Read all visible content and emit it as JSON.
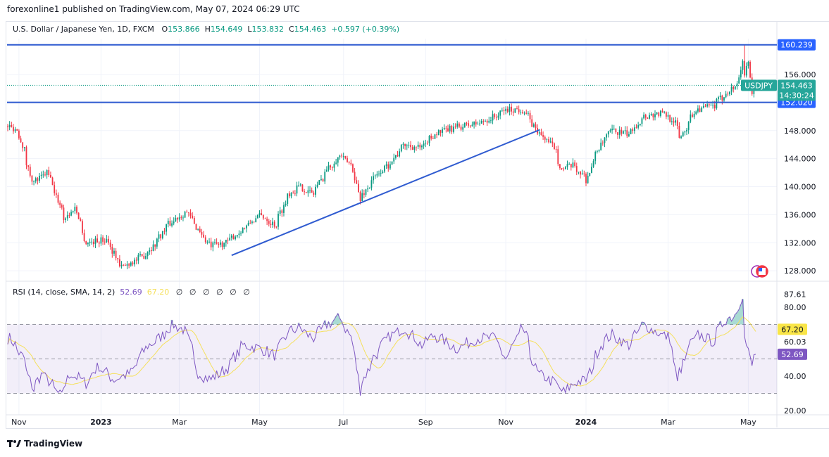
{
  "publisher_line": "forexonline1 published on TradingView.com, May 07, 2024 06:29 UTC",
  "legend": {
    "title": "U.S. Dollar / Japanese Yen, 1D, FXCM",
    "o_label": "O",
    "o": "153.866",
    "h_label": "H",
    "h": "154.649",
    "l_label": "L",
    "l": "153.832",
    "c_label": "C",
    "c": "154.463",
    "change": "+0.597 (+0.39%)"
  },
  "rsi_legend": {
    "title": "RSI (14, close, SMA, 14, 2)",
    "rsi": "52.69",
    "sma": "67.20",
    "empty": [
      "∅",
      "∅",
      "∅",
      "∅",
      "∅",
      "∅"
    ]
  },
  "footer": {
    "brand": "TradingView"
  },
  "colors": {
    "up": "#089981",
    "down": "#f23645",
    "line": "#2f5bd0",
    "rsi": "#7e57c2",
    "sma": "#f5e05c",
    "band": "#7e57c2"
  },
  "chart_data": [
    {
      "type": "candlestick",
      "symbol": "USDJPY",
      "timeframe": "1D",
      "last": {
        "date": "2024-05-07",
        "open": 153.866,
        "high": 154.649,
        "low": 153.832,
        "close": 154.463
      },
      "countdown": "14:30:24",
      "approx_close_path": [
        [
          "2022-10-24",
          148.6
        ],
        [
          "2022-10-31",
          148.0
        ],
        [
          "2022-11-11",
          140.5
        ],
        [
          "2022-11-22",
          142.0
        ],
        [
          "2022-12-05",
          135.5
        ],
        [
          "2022-12-13",
          137.0
        ],
        [
          "2022-12-21",
          132.0
        ],
        [
          "2023-01-06",
          132.5
        ],
        [
          "2023-01-16",
          128.5
        ],
        [
          "2023-02-01",
          130.0
        ],
        [
          "2023-02-09",
          131.5
        ],
        [
          "2023-02-20",
          134.5
        ],
        [
          "2023-03-06",
          136.5
        ],
        [
          "2023-03-13",
          134.5
        ],
        [
          "2023-03-24",
          131.5
        ],
        [
          "2023-04-05",
          132.0
        ],
        [
          "2023-04-18",
          134.0
        ],
        [
          "2023-05-01",
          136.0
        ],
        [
          "2023-05-12",
          134.5
        ],
        [
          "2023-05-22",
          139.0
        ],
        [
          "2023-05-30",
          140.0
        ],
        [
          "2023-06-09",
          139.0
        ],
        [
          "2023-06-20",
          142.5
        ],
        [
          "2023-06-30",
          144.5
        ],
        [
          "2023-07-10",
          142.5
        ],
        [
          "2023-07-14",
          138.0
        ],
        [
          "2023-07-24",
          141.0
        ],
        [
          "2023-08-04",
          143.0
        ],
        [
          "2023-08-17",
          146.0
        ],
        [
          "2023-08-30",
          145.5
        ],
        [
          "2023-09-08",
          147.5
        ],
        [
          "2023-09-25",
          148.5
        ],
        [
          "2023-10-11",
          149.0
        ],
        [
          "2023-10-24",
          150.0
        ],
        [
          "2023-11-01",
          151.0
        ],
        [
          "2023-11-14",
          151.0
        ],
        [
          "2023-11-24",
          148.0
        ],
        [
          "2023-12-08",
          145.5
        ],
        [
          "2023-12-13",
          142.5
        ],
        [
          "2023-12-22",
          143.0
        ],
        [
          "2024-01-01",
          141.0
        ],
        [
          "2024-01-08",
          145.0
        ],
        [
          "2024-01-19",
          148.0
        ],
        [
          "2024-02-01",
          147.5
        ],
        [
          "2024-02-12",
          150.0
        ],
        [
          "2024-02-26",
          150.5
        ],
        [
          "2024-03-06",
          149.5
        ],
        [
          "2024-03-11",
          147.0
        ],
        [
          "2024-03-22",
          151.0
        ],
        [
          "2024-04-05",
          151.5
        ],
        [
          "2024-04-15",
          153.5
        ],
        [
          "2024-04-23",
          154.6
        ],
        [
          "2024-04-26",
          158.0
        ],
        [
          "2024-04-29",
          156.0
        ],
        [
          "2024-05-01",
          157.5
        ],
        [
          "2024-05-03",
          153.0
        ],
        [
          "2024-05-07",
          154.463
        ]
      ],
      "spike": {
        "date": "2024-04-29",
        "high": 160.239
      },
      "horizontal_levels": [
        {
          "price": 160.239,
          "label": "160.239"
        },
        {
          "price": 152.02,
          "label": "152.020"
        }
      ],
      "trendline": {
        "from": [
          "2023-04-10",
          130.2
        ],
        "to": [
          "2023-11-27",
          148.1
        ]
      },
      "y_ticks": [
        "156.000",
        "148.000",
        "144.000",
        "140.000",
        "136.000",
        "132.000",
        "128.000"
      ],
      "price_label": {
        "symbol": "USDJPY",
        "value": "154.463"
      },
      "x_ticks": [
        {
          "label": "Nov",
          "date": "2022-11-01"
        },
        {
          "label": "2023",
          "date": "2023-01-02"
        },
        {
          "label": "Mar",
          "date": "2023-03-01"
        },
        {
          "label": "May",
          "date": "2023-05-01"
        },
        {
          "label": "Jul",
          "date": "2023-07-03"
        },
        {
          "label": "Sep",
          "date": "2023-09-01"
        },
        {
          "label": "Nov",
          "date": "2023-11-01"
        },
        {
          "label": "2024",
          "date": "2024-01-01"
        },
        {
          "label": "Mar",
          "date": "2024-03-01"
        },
        {
          "label": "May",
          "date": "2024-05-01"
        }
      ]
    },
    {
      "type": "line",
      "title": "RSI (14, close, SMA, 14, 2)",
      "ylim": [
        20,
        90
      ],
      "bands": {
        "upper": 70,
        "middle": 50,
        "lower": 30
      },
      "y_ticks": [
        "87.61",
        "80.00",
        "60.03",
        "40.00",
        "20.00"
      ],
      "last_rsi": "52.69",
      "last_sma": "67.20",
      "rsi_path": [
        [
          "2022-10-25",
          62
        ],
        [
          "2022-11-04",
          50
        ],
        [
          "2022-11-11",
          32
        ],
        [
          "2022-11-18",
          42
        ],
        [
          "2022-12-02",
          28
        ],
        [
          "2022-12-09",
          42
        ],
        [
          "2022-12-21",
          36
        ],
        [
          "2022-12-30",
          46
        ],
        [
          "2023-01-11",
          38
        ],
        [
          "2023-01-24",
          42
        ],
        [
          "2023-02-03",
          56
        ],
        [
          "2023-02-14",
          62
        ],
        [
          "2023-02-24",
          70
        ],
        [
          "2023-03-06",
          66
        ],
        [
          "2023-03-15",
          42
        ],
        [
          "2023-03-24",
          38
        ],
        [
          "2023-04-05",
          44
        ],
        [
          "2023-04-18",
          58
        ],
        [
          "2023-05-01",
          56
        ],
        [
          "2023-05-12",
          52
        ],
        [
          "2023-05-22",
          66
        ],
        [
          "2023-05-30",
          68
        ],
        [
          "2023-06-09",
          62
        ],
        [
          "2023-06-20",
          70
        ],
        [
          "2023-06-30",
          74
        ],
        [
          "2023-07-10",
          58
        ],
        [
          "2023-07-14",
          32
        ],
        [
          "2023-07-24",
          50
        ],
        [
          "2023-08-04",
          62
        ],
        [
          "2023-08-17",
          68
        ],
        [
          "2023-08-30",
          58
        ],
        [
          "2023-09-08",
          64
        ],
        [
          "2023-09-25",
          56
        ],
        [
          "2023-10-11",
          62
        ],
        [
          "2023-10-24",
          62
        ],
        [
          "2023-11-01",
          50
        ],
        [
          "2023-11-14",
          68
        ],
        [
          "2023-11-24",
          42
        ],
        [
          "2023-12-08",
          36
        ],
        [
          "2023-12-15",
          30
        ],
        [
          "2023-12-22",
          36
        ],
        [
          "2024-01-01",
          38
        ],
        [
          "2024-01-11",
          58
        ],
        [
          "2024-01-19",
          64
        ],
        [
          "2024-02-01",
          58
        ],
        [
          "2024-02-12",
          70
        ],
        [
          "2024-02-26",
          64
        ],
        [
          "2024-03-04",
          62
        ],
        [
          "2024-03-08",
          36
        ],
        [
          "2024-03-18",
          58
        ],
        [
          "2024-03-25",
          64
        ],
        [
          "2024-04-05",
          60
        ],
        [
          "2024-04-12",
          72
        ],
        [
          "2024-04-22",
          76
        ],
        [
          "2024-04-26",
          87.61
        ],
        [
          "2024-04-29",
          62
        ],
        [
          "2024-05-01",
          54
        ],
        [
          "2024-05-03",
          46
        ],
        [
          "2024-05-07",
          52.69
        ]
      ]
    }
  ]
}
